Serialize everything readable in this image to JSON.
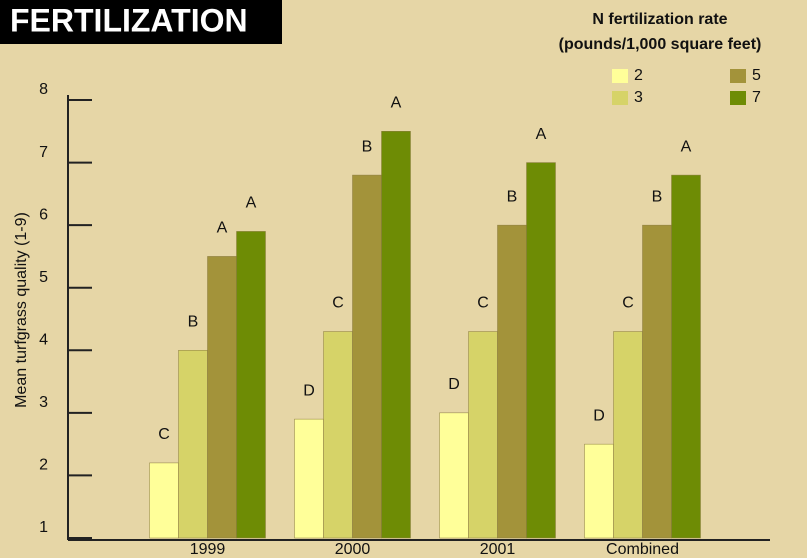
{
  "chart_data": {
    "type": "bar",
    "title": "FERTILIZATION",
    "legend_title": [
      "N fertilization rate",
      "(pounds/1,000 square feet)"
    ],
    "ylabel": "Mean turfgrass quality (1-9)",
    "categories": [
      "1999",
      "2000",
      "2001",
      "Combined"
    ],
    "series": [
      {
        "name": "2",
        "color": "#ffff99",
        "values": [
          2.2,
          2.9,
          3.0,
          2.5
        ],
        "letters": [
          "C",
          "D",
          "D",
          "D"
        ]
      },
      {
        "name": "3",
        "color": "#d6d368",
        "values": [
          4.0,
          4.3,
          4.3,
          4.3
        ],
        "letters": [
          "B",
          "C",
          "C",
          "C"
        ]
      },
      {
        "name": "5",
        "color": "#a3933a",
        "values": [
          5.5,
          6.8,
          6.0,
          6.0
        ],
        "letters": [
          "A",
          "B",
          "B",
          "B"
        ]
      },
      {
        "name": "7",
        "color": "#6e8c05",
        "values": [
          5.9,
          7.5,
          7.0,
          6.8
        ],
        "letters": [
          "A",
          "A",
          "A",
          "A"
        ]
      }
    ],
    "ylim": [
      1,
      8
    ],
    "yticks": [
      1,
      2,
      3,
      4,
      5,
      6,
      7,
      8
    ]
  }
}
